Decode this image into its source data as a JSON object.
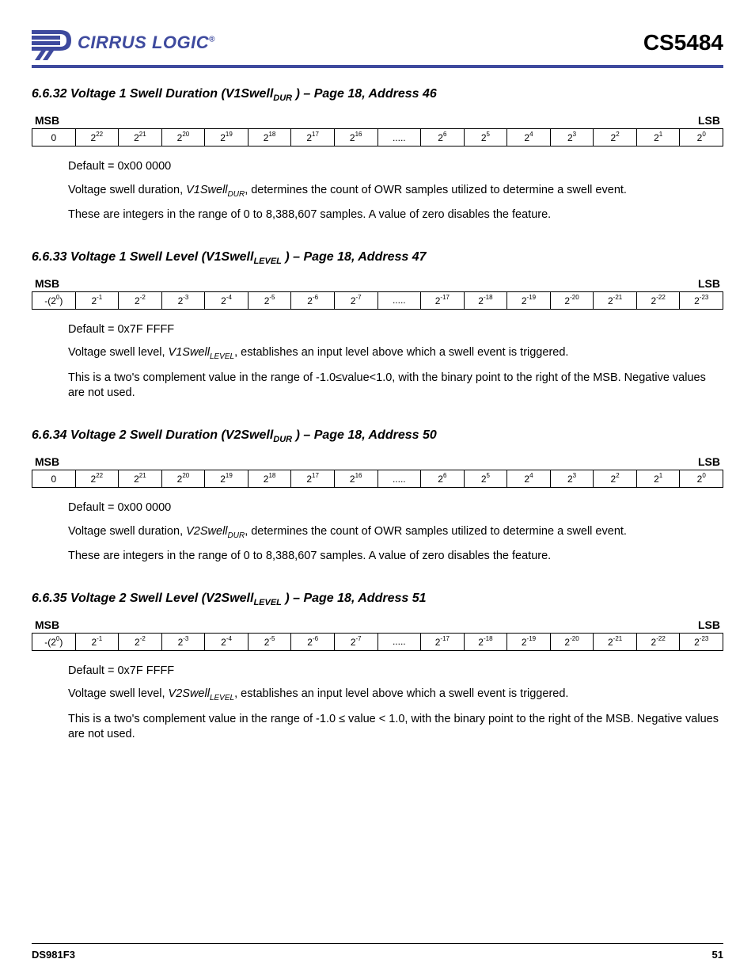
{
  "header": {
    "logo_text": "CIRRUS LOGIC",
    "part_number": "CS5484",
    "logo_color": "#3e4a9e",
    "rule_color": "#3e4a9e"
  },
  "sections": [
    {
      "number": "6.6.32",
      "title_prefix": "Voltage 1 Swell Duration (V1Swell",
      "title_sub": "DUR",
      "title_suffix": " ) – Page 18, Address 46",
      "msb_label": "MSB",
      "lsb_label": "LSB",
      "bits": [
        "0",
        "2^22",
        "2^21",
        "2^20",
        "2^19",
        "2^18",
        "2^17",
        "2^16",
        ".....",
        "2^6",
        "2^5",
        "2^4",
        "2^3",
        "2^2",
        "2^1",
        "2^0"
      ],
      "default_label": "Default = 0x00 0000",
      "para1_a": "Voltage swell duration, ",
      "para1_name": "V1Swell",
      "para1_sub": "DUR",
      "para1_b": ", determines the count of OWR samples utilized to determine a swell event.",
      "para2": "These are integers in the range of 0 to 8,388,607 samples. A value of zero disables the feature."
    },
    {
      "number": "6.6.33",
      "title_prefix": "Voltage 1 Swell Level (V1Swell",
      "title_sub": "LEVEL",
      "title_suffix": " ) – Page 18, Address 47",
      "msb_label": "MSB",
      "lsb_label": "LSB",
      "bits": [
        "-(2^0)",
        "2^-1",
        "2^-2",
        "2^-3",
        "2^-4",
        "2^-5",
        "2^-6",
        "2^-7",
        ".....",
        "2^-17",
        "2^-18",
        "2^-19",
        "2^-20",
        "2^-21",
        "2^-22",
        "2^-23"
      ],
      "default_label": "Default = 0x7F FFFF",
      "para1_a": "Voltage swell level, ",
      "para1_name": "V1Swell",
      "para1_sub": "LEVEL",
      "para1_b": ", establishes an input level above which a swell event is triggered.",
      "para2": "This is a two's complement value in the range of -1.0≤value<1.0, with the binary point to the right of the MSB. Negative values are not used."
    },
    {
      "number": "6.6.34",
      "title_prefix": "Voltage 2 Swell Duration (V2Swell",
      "title_sub": "DUR",
      "title_suffix": " ) – Page 18, Address 50",
      "msb_label": "MSB",
      "lsb_label": "LSB",
      "bits": [
        "0",
        "2^22",
        "2^21",
        "2^20",
        "2^19",
        "2^18",
        "2^17",
        "2^16",
        ".....",
        "2^6",
        "2^5",
        "2^4",
        "2^3",
        "2^2",
        "2^1",
        "2^0"
      ],
      "default_label": "Default = 0x00 0000",
      "para1_a": "Voltage swell duration, ",
      "para1_name": "V2Swell",
      "para1_sub": "DUR",
      "para1_b": ", determines the count of OWR samples utilized to determine a swell event.",
      "para2": "These are integers in the range of 0 to 8,388,607 samples. A value of zero disables the feature."
    },
    {
      "number": "6.6.35",
      "title_prefix": "Voltage 2 Swell Level (V2Swell",
      "title_sub": "LEVEL",
      "title_suffix": " ) – Page 18, Address 51",
      "msb_label": "MSB",
      "lsb_label": "LSB",
      "bits": [
        "-(2^0)",
        "2^-1",
        "2^-2",
        "2^-3",
        "2^-4",
        "2^-5",
        "2^-6",
        "2^-7",
        ".....",
        "2^-17",
        "2^-18",
        "2^-19",
        "2^-20",
        "2^-21",
        "2^-22",
        "2^-23"
      ],
      "default_label": "Default = 0x7F FFFF",
      "para1_a": "Voltage swell level, ",
      "para1_name": "V2Swell",
      "para1_sub": "LEVEL",
      "para1_b": ", establishes an input level above which a swell event is triggered.",
      "para2": "This is a two's complement value in the range of -1.0 ≤ value < 1.0, with the binary point to the right of the MSB. Negative values are not used."
    }
  ],
  "footer": {
    "doc_id": "DS981F3",
    "page_num": "51"
  }
}
